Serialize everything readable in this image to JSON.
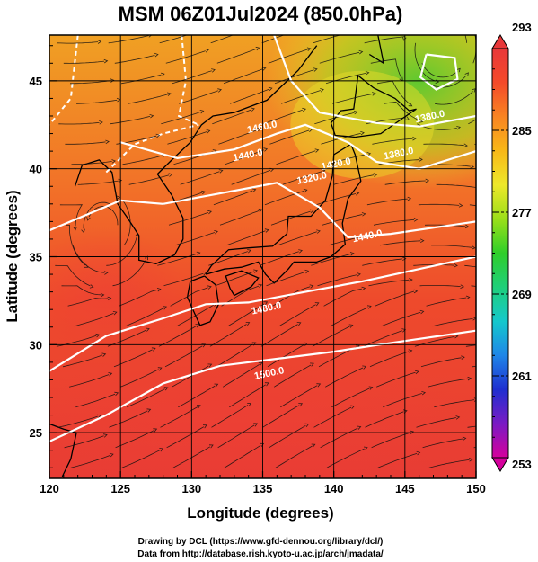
{
  "chart_data": {
    "type": "heatmap",
    "title": "MSM 06Z01Jul2024 (850.0hPa)",
    "xlabel": "Longitude (degrees)",
    "ylabel": "Latitude  (degrees)",
    "xlim": [
      120,
      150
    ],
    "ylim": [
      22.4,
      47.6
    ],
    "x_ticks": [
      120,
      125,
      130,
      135,
      140,
      145,
      150
    ],
    "y_ticks": [
      25,
      30,
      35,
      40,
      45
    ],
    "grid": true,
    "colorbar": {
      "min": 253,
      "max": 293,
      "ticks": [
        293,
        285,
        277,
        269,
        261,
        253
      ],
      "colors": [
        "#d6009c",
        "#7a1bc4",
        "#1f2fd0",
        "#1f86e8",
        "#14c8cc",
        "#1fcf7a",
        "#2fce2a",
        "#9adf1a",
        "#eee82a",
        "#f8b818",
        "#f88422",
        "#f44a2a",
        "#e8383a"
      ]
    },
    "contours": [
      {
        "label": "1440.0",
        "lon": 134.0,
        "lat": 40.6
      },
      {
        "label": "1460.0",
        "lon": 135.0,
        "lat": 42.2
      },
      {
        "label": "1320.0",
        "lon": 138.5,
        "lat": 39.3
      },
      {
        "label": "1380.0",
        "lon": 144.6,
        "lat": 40.7
      },
      {
        "label": "1380.0",
        "lon": 146.8,
        "lat": 42.8
      },
      {
        "label": "1420.0",
        "lon": 140.2,
        "lat": 40.1
      },
      {
        "label": "1440.0",
        "lon": 142.4,
        "lat": 36.0
      },
      {
        "label": "1480.0",
        "lon": 135.3,
        "lat": 31.9
      },
      {
        "label": "1500.0",
        "lon": 135.5,
        "lat": 28.2
      }
    ],
    "annotations": [
      "Drawing by DCL (https://www.gfd-dennou.org/library/dcl/)",
      "Data from http://database.rish.kyoto-u.ac.jp/arch/jmadata/"
    ]
  }
}
